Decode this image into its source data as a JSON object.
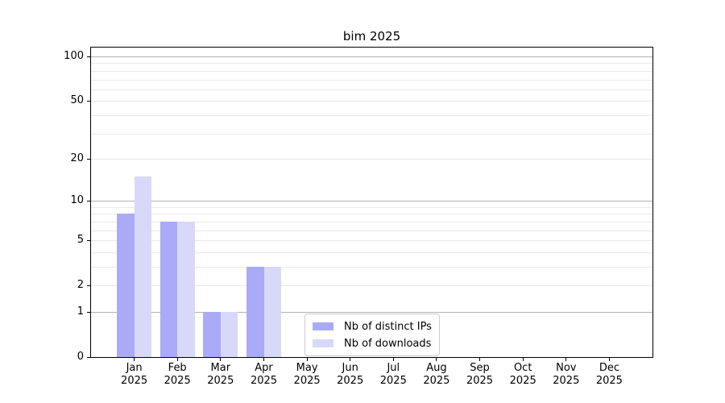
{
  "chart_data": {
    "type": "bar",
    "title": "bim 2025",
    "categories": [
      "Jan",
      "Feb",
      "Mar",
      "Apr",
      "May",
      "Jun",
      "Jul",
      "Aug",
      "Sep",
      "Oct",
      "Nov",
      "Dec"
    ],
    "year_label": "2025",
    "series": [
      {
        "name": "Nb of distinct IPs",
        "color": "#aaaaf7",
        "values": [
          8,
          7,
          1,
          3,
          0,
          0,
          0,
          0,
          0,
          0,
          0,
          0
        ]
      },
      {
        "name": "Nb of downloads",
        "color": "#d8d8f9",
        "values": [
          15,
          7,
          1,
          3,
          0,
          0,
          0,
          0,
          0,
          0,
          0,
          0
        ]
      }
    ],
    "yscale": "log1p",
    "yticks": [
      100,
      50,
      20,
      10,
      5,
      2,
      1,
      0
    ],
    "ylim": [
      0,
      115
    ],
    "grid": {
      "orientation": "horizontal",
      "major_at": [
        1,
        10,
        100
      ],
      "minor_at": [
        2,
        3,
        4,
        5,
        6,
        7,
        8,
        9,
        20,
        30,
        40,
        50,
        60,
        70,
        80,
        90
      ],
      "major_color": "#b2b2b2",
      "minor_color": "#e9e9e9"
    },
    "legend_position": "inside bottom-center",
    "axis_color": "#000000",
    "background_color": "#ffffff"
  }
}
